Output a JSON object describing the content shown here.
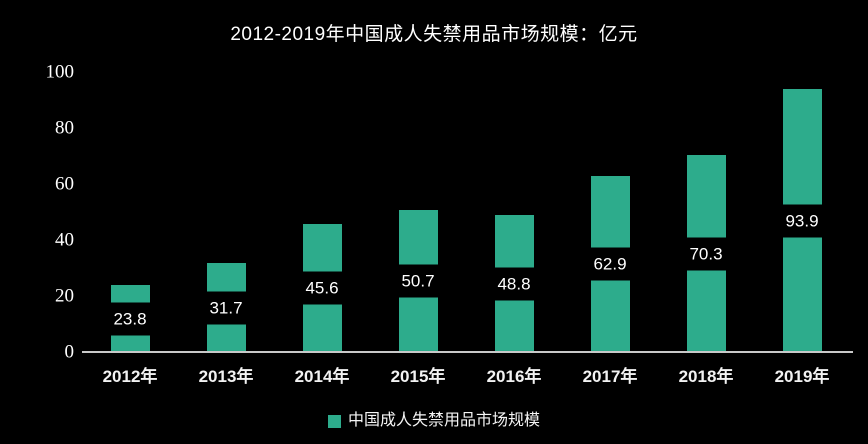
{
  "title": "2012-2019年中国成人失禁用品市场规模：亿元",
  "legend": {
    "label": "中国成人失禁用品市场规模"
  },
  "colors": {
    "background": "#000000",
    "bar": "#2dac8c",
    "axis_line": "#c9c9c9",
    "text": "#ffffff"
  },
  "chart_data": {
    "type": "bar",
    "title": "2012-2019年中国成人失禁用品市场规模：亿元",
    "categories": [
      "2012年",
      "2013年",
      "2014年",
      "2015年",
      "2016年",
      "2017年",
      "2018年",
      "2019年"
    ],
    "series": [
      {
        "name": "中国成人失禁用品市场规模",
        "values": [
          23.8,
          31.7,
          45.6,
          50.7,
          48.8,
          62.9,
          70.3,
          93.9
        ]
      }
    ],
    "xlabel": "",
    "ylabel": "",
    "unit": "亿元",
    "ylim": [
      0,
      100
    ],
    "yticks": [
      0,
      20,
      40,
      60,
      80,
      100
    ],
    "grid": false,
    "legend_position": "bottom",
    "value_labels": "inside-middle-black-band"
  }
}
